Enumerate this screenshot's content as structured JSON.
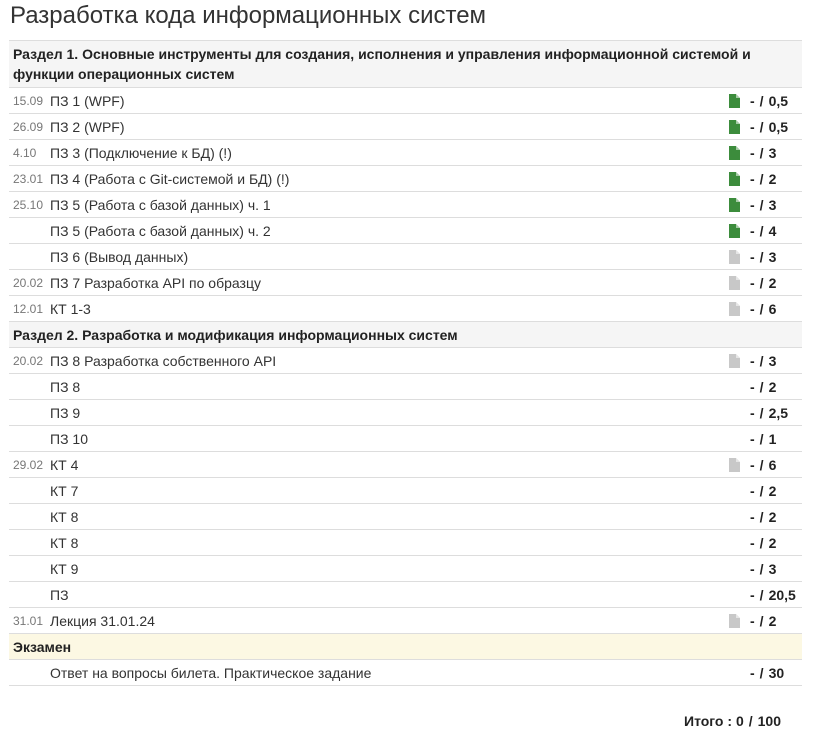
{
  "page": {
    "title": "Разработка кода информационных систем"
  },
  "colors": {
    "icon_active": "#3c8c3c",
    "icon_inactive": "#c8c8c8",
    "exam_bg": "#fcf8e3",
    "section_bg": "#f5f5f5"
  },
  "sections": [
    {
      "title": "Раздел 1. Основные инструменты для создания, исполнения и управления информационной системой и функции операционных систем"
    },
    {
      "title": "Раздел 2. Разработка и модификация информационных систем"
    },
    {
      "title": "Экзамен"
    }
  ],
  "rows": [
    {
      "date": "15.09",
      "name": "ПЗ 1 (WPF)",
      "icon": "file-active-icon",
      "got": "-",
      "slash": "/",
      "max": "0,5"
    },
    {
      "date": "26.09",
      "name": "ПЗ 2 (WPF)",
      "icon": "file-active-icon",
      "got": "-",
      "slash": "/",
      "max": "0,5"
    },
    {
      "date": "4.10",
      "name": "ПЗ 3 (Подключение к БД) (!)",
      "icon": "file-active-icon",
      "got": "-",
      "slash": "/",
      "max": "3"
    },
    {
      "date": "23.01",
      "name": "ПЗ 4 (Работа с Git-системой и БД) (!)",
      "icon": "file-active-icon",
      "got": "-",
      "slash": "/",
      "max": "2"
    },
    {
      "date": "25.10",
      "name": "ПЗ 5 (Работа с базой данных) ч. 1",
      "icon": "file-active-icon",
      "got": "-",
      "slash": "/",
      "max": "3"
    },
    {
      "date": "",
      "name": "ПЗ 5 (Работа с базой данных) ч. 2",
      "icon": "file-active-icon",
      "got": "-",
      "slash": "/",
      "max": "4"
    },
    {
      "date": "",
      "name": "ПЗ 6 (Вывод данных)",
      "icon": "file-inactive-icon",
      "got": "-",
      "slash": "/",
      "max": "3"
    },
    {
      "date": "20.02",
      "name": "ПЗ 7 Разработка API по образцу",
      "icon": "file-inactive-icon",
      "got": "-",
      "slash": "/",
      "max": "2"
    },
    {
      "date": "12.01",
      "name": "КТ 1-3",
      "icon": "file-inactive-icon",
      "got": "-",
      "slash": "/",
      "max": "6"
    },
    {
      "date": "20.02",
      "name": "ПЗ 8 Разработка собственного API",
      "icon": "file-inactive-icon",
      "got": "-",
      "slash": "/",
      "max": "3"
    },
    {
      "date": "",
      "name": "ПЗ 8",
      "icon": "",
      "got": "-",
      "slash": "/",
      "max": "2"
    },
    {
      "date": "",
      "name": "ПЗ 9",
      "icon": "",
      "got": "-",
      "slash": "/",
      "max": "2,5"
    },
    {
      "date": "",
      "name": "ПЗ 10",
      "icon": "",
      "got": "-",
      "slash": "/",
      "max": "1"
    },
    {
      "date": "29.02",
      "name": "КТ 4",
      "icon": "file-inactive-icon",
      "got": "-",
      "slash": "/",
      "max": "6"
    },
    {
      "date": "",
      "name": "КТ 7",
      "icon": "",
      "got": "-",
      "slash": "/",
      "max": "2"
    },
    {
      "date": "",
      "name": "КТ 8",
      "icon": "",
      "got": "-",
      "slash": "/",
      "max": "2"
    },
    {
      "date": "",
      "name": "КТ 8",
      "icon": "",
      "got": "-",
      "slash": "/",
      "max": "2"
    },
    {
      "date": "",
      "name": "КТ 9",
      "icon": "",
      "got": "-",
      "slash": "/",
      "max": "3"
    },
    {
      "date": "",
      "name": "ПЗ",
      "icon": "",
      "got": "-",
      "slash": "/",
      "max": "20,5"
    },
    {
      "date": "31.01",
      "name": "Лекция 31.01.24",
      "icon": "file-inactive-icon",
      "got": "-",
      "slash": "/",
      "max": "2"
    },
    {
      "date": "",
      "name": "Ответ на вопросы билета. Практическое задание",
      "icon": "",
      "got": "-",
      "slash": "/",
      "max": "30"
    }
  ],
  "total": {
    "label": "Итого :",
    "got": "0",
    "slash": "/",
    "max": "100"
  }
}
